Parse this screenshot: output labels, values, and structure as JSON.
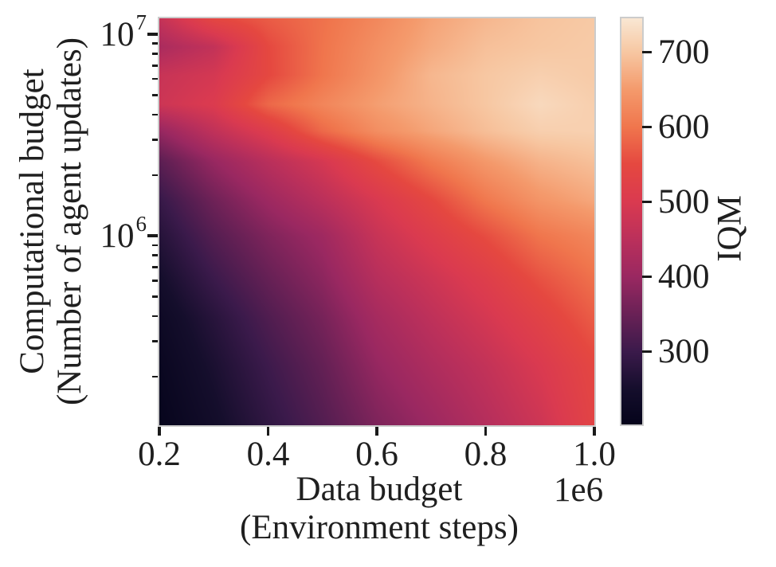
{
  "chart_data": {
    "type": "heatmap",
    "title": "",
    "xlabel_lines": [
      "Data budget",
      "(Environment steps)"
    ],
    "ylabel_lines": [
      "Computational budget",
      "(Number of agent updates)"
    ],
    "x_offset_text": "1e6",
    "x_scale": "linear",
    "y_scale": "log",
    "x_range": [
      0.2,
      1.0
    ],
    "y_range": [
      115000,
      12000000
    ],
    "x_ticks": [
      0.2,
      0.4,
      0.6,
      0.8,
      1.0
    ],
    "x_tick_labels": [
      "0.2",
      "0.4",
      "0.6",
      "0.8",
      "1.0"
    ],
    "y_major_ticks": [
      {
        "value": 10000000,
        "label_base": "10",
        "label_exp": "7"
      },
      {
        "value": 1000000,
        "label_base": "10",
        "label_exp": "6"
      }
    ],
    "y_minor_tick_values": [
      9000000,
      8000000,
      7000000,
      6000000,
      5000000,
      4000000,
      3000000,
      2000000,
      900000,
      800000,
      700000,
      600000,
      500000,
      400000,
      300000,
      200000
    ],
    "x": [
      0.2,
      0.3,
      0.4,
      0.5,
      0.6,
      0.7,
      0.8,
      0.9,
      1.0
    ],
    "y": [
      12000000,
      8700000,
      6300000,
      4500000,
      3300000,
      2350000,
      1500000,
      1000000,
      610000,
      390000,
      225000,
      115000
    ],
    "values": [
      [
        465,
        545,
        572,
        595,
        625,
        660,
        682,
        696,
        703
      ],
      [
        425,
        462,
        550,
        598,
        635,
        668,
        692,
        700,
        705
      ],
      [
        470,
        490,
        548,
        600,
        642,
        682,
        700,
        712,
        705
      ],
      [
        478,
        505,
        585,
        622,
        655,
        678,
        700,
        725,
        711
      ],
      [
        395,
        458,
        512,
        585,
        633,
        663,
        690,
        711,
        713
      ],
      [
        335,
        398,
        448,
        492,
        553,
        607,
        648,
        678,
        693
      ],
      [
        295,
        355,
        405,
        450,
        498,
        547,
        603,
        643,
        665
      ],
      [
        272,
        328,
        372,
        408,
        470,
        513,
        555,
        600,
        623
      ],
      [
        248,
        300,
        345,
        385,
        443,
        478,
        515,
        560,
        595
      ],
      [
        230,
        275,
        322,
        363,
        418,
        455,
        490,
        530,
        573
      ],
      [
        218,
        258,
        302,
        343,
        395,
        430,
        462,
        500,
        545
      ],
      [
        208,
        243,
        285,
        325,
        370,
        403,
        440,
        478,
        535
      ]
    ],
    "colorbar": {
      "label": "IQM",
      "ticks": [
        700,
        600,
        500,
        400,
        300
      ],
      "tick_labels": [
        "700",
        "600",
        "500",
        "400",
        "300"
      ],
      "vmin": 203,
      "vmax": 745,
      "colormap": "rocket",
      "color_stops": [
        [
          203,
          "#05041B"
        ],
        [
          250,
          "#150E2C"
        ],
        [
          300,
          "#3B1A4B"
        ],
        [
          350,
          "#6A2156"
        ],
        [
          400,
          "#9A2861"
        ],
        [
          450,
          "#BB305B"
        ],
        [
          500,
          "#DA3A50"
        ],
        [
          550,
          "#E54840"
        ],
        [
          600,
          "#F0764D"
        ],
        [
          650,
          "#F49A6C"
        ],
        [
          700,
          "#F7C7A2"
        ],
        [
          745,
          "#F9E7D3"
        ]
      ]
    },
    "grid": false,
    "legend": "none"
  },
  "colors": {
    "background": "#ffffff",
    "text": "#1f1f1f",
    "spine": "#cccccc",
    "tick": "#1a1a1a"
  }
}
